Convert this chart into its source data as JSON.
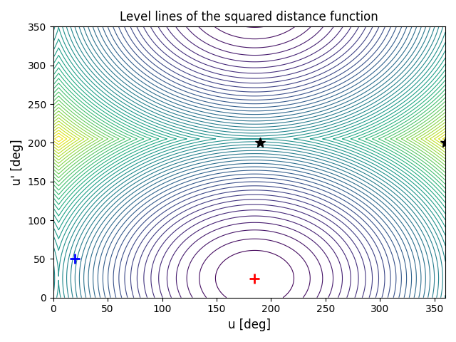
{
  "title": "Level lines of the squared distance function",
  "xlabel": "u [deg]",
  "ylabel": "u' [deg]",
  "xlim": [
    0,
    360
  ],
  "ylim": [
    0,
    350
  ],
  "x_ticks": [
    0,
    50,
    100,
    150,
    200,
    250,
    300,
    350
  ],
  "y_ticks": [
    0,
    50,
    100,
    150,
    200,
    250,
    300,
    350
  ],
  "ref_point": [
    185,
    25
  ],
  "blue_cross": [
    20,
    50
  ],
  "star1": [
    190,
    200
  ],
  "star2": [
    360,
    200
  ],
  "n_levels": 50,
  "cmap": "viridis",
  "figsize": [
    6.4,
    4.8
  ],
  "dpi": 100
}
